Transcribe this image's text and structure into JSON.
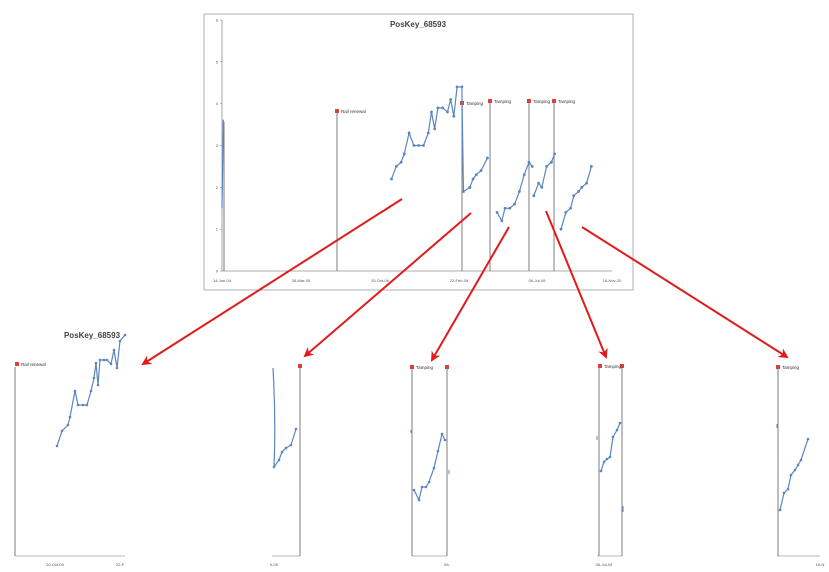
{
  "chart_data": [
    {
      "type": "line",
      "title": "PosKey_68593",
      "yticks": [
        "0",
        "1",
        "2",
        "3",
        "4",
        "5",
        "6"
      ],
      "ylim": [
        0,
        6
      ],
      "xticks": [
        "14-Jun-04",
        "28-Mar-05",
        "20-Oct-08",
        "22-Feb-09",
        "06-Jul-09",
        "18-Nov-20"
      ],
      "grid": false,
      "annotations": [
        {
          "label": "Rail renewal",
          "x": 0.35
        },
        {
          "label": "Tamping",
          "x": 0.69
        },
        {
          "label": "Tamping",
          "x": 0.735
        },
        {
          "label": "Tamping",
          "x": 0.84
        },
        {
          "label": "Tamping",
          "x": 0.88
        }
      ],
      "series": [
        {
          "values": [
            [
              0.0,
              1.5
            ],
            [
              0.004,
              3.6
            ],
            [
              0.006,
              3.6
            ]
          ]
        },
        {
          "values": [
            [
              0.53,
              2.2
            ],
            [
              0.545,
              2.5
            ],
            [
              0.56,
              2.6
            ],
            [
              0.57,
              2.8
            ],
            [
              0.585,
              3.3
            ],
            [
              0.6,
              3.0
            ],
            [
              0.615,
              3.0
            ],
            [
              0.63,
              3.0
            ],
            [
              0.645,
              3.3
            ],
            [
              0.655,
              3.8
            ],
            [
              0.665,
              3.4
            ],
            [
              0.675,
              3.9
            ],
            [
              0.69,
              3.9
            ],
            [
              0.705,
              3.8
            ],
            [
              0.715,
              4.1
            ],
            [
              0.725,
              3.7
            ],
            [
              0.735,
              4.4
            ],
            [
              0.75,
              4.4
            ],
            [
              0.755,
              1.9
            ],
            [
              0.775,
              2.0
            ]
          ]
        },
        {
          "values": [
            [
              0.775,
              2.0
            ],
            [
              0.785,
              2.2
            ],
            [
              0.795,
              2.3
            ],
            [
              0.81,
              2.4
            ],
            [
              0.83,
              2.7
            ]
          ]
        },
        {
          "values": [
            [
              0.86,
              1.4
            ],
            [
              0.875,
              1.2
            ],
            [
              0.885,
              1.5
            ],
            [
              0.9,
              1.5
            ],
            [
              0.915,
              1.6
            ],
            [
              0.93,
              1.9
            ],
            [
              0.945,
              2.3
            ],
            [
              0.96,
              2.6
            ],
            [
              0.97,
              2.5
            ]
          ]
        },
        {
          "values": [
            [
              0.975,
              1.8
            ],
            [
              0.99,
              2.1
            ],
            [
              1.0,
              2.0
            ],
            [
              1.015,
              2.5
            ],
            [
              1.03,
              2.6
            ],
            [
              1.04,
              2.8
            ]
          ]
        },
        {
          "values": [
            [
              1.06,
              1.0
            ],
            [
              1.075,
              1.4
            ],
            [
              1.09,
              1.5
            ],
            [
              1.1,
              1.8
            ],
            [
              1.115,
              1.9
            ],
            [
              1.125,
              2.0
            ],
            [
              1.14,
              2.1
            ],
            [
              1.155,
              2.5
            ]
          ]
        }
      ]
    }
  ],
  "zoom_panels": [
    {
      "title": "PosKey_68593",
      "annotation": "Rail renewal",
      "xticks": [
        "20-Oct-09",
        "22-F"
      ]
    },
    {
      "annotation": "",
      "xticks": [
        "b-09"
      ]
    },
    {
      "annotation": "Tamping",
      "xticks": [
        "06-"
      ]
    },
    {
      "annotation": "Tamping",
      "xticks": [
        "06-Jul-09"
      ]
    },
    {
      "annotation": "Tamping",
      "xticks": [
        "18-N"
      ]
    }
  ],
  "colors": {
    "series": "#5a86c0",
    "marker": "#d9413a",
    "arrow": "#e01b1b",
    "frame": "#b0b0b0"
  }
}
